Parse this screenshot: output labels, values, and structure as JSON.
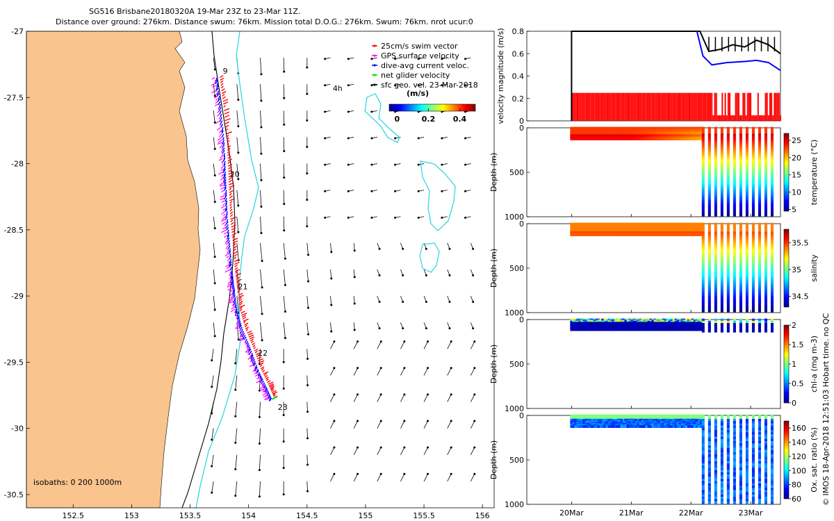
{
  "header": {
    "line1": "SG516 Brisbane20180320A 19-Mar 23Z to 23-Mar 11Z.",
    "line2": "Distance over ground: 276km. Distance swum: 76km. Mission total D.O.G.: 276km. Swum: 76km. nrot ucur:0"
  },
  "colors": {
    "land": "#f9c48e",
    "contour_200m": "#000000",
    "contour_1000m": "#22d4e0",
    "swim_vector": "#ff0000",
    "gps_velocity": "#ff00ff",
    "dive_avg": "#0000ff",
    "net_velocity": "#00dd00",
    "sfc_geo": "#000000"
  },
  "map": {
    "xlim": [
      152.1,
      156.1
    ],
    "ylim": [
      -30.6,
      -27.0
    ],
    "xticks": [
      "152.5",
      "153",
      "153.5",
      "154",
      "154.5",
      "155",
      "155.5",
      "156"
    ],
    "xtick_values": [
      152.5,
      153,
      153.5,
      154,
      154.5,
      155,
      155.5,
      156
    ],
    "yticks": [
      "-27",
      "-27.5",
      "-28",
      "-28.5",
      "-29",
      "-29.5",
      "-30",
      "-30.5"
    ],
    "ytick_values": [
      -27,
      -27.5,
      -28,
      -28.5,
      -29,
      -29.5,
      -30,
      -30.5
    ],
    "legend": [
      {
        "label": "25cm/s swim vector",
        "color": "#ff0000"
      },
      {
        "label": "GPS surface velocity",
        "color": "#ff00ff"
      },
      {
        "label": "dive-avg current veloc.",
        "color": "#0000ff"
      },
      {
        "label": "net glider velocity",
        "color": "#00dd00"
      },
      {
        "label": "sfc geo. vel. 23-Mar-2018",
        "color": "#000000"
      }
    ],
    "colorbar": {
      "title": "(m/s)",
      "ticks": [
        "0",
        "0.2",
        "0.4"
      ],
      "tick_values": [
        0,
        0.2,
        0.4
      ],
      "range": [
        -0.05,
        0.5
      ]
    },
    "isobaths_label": "isobaths: 0   200  1000m",
    "day_labels": [
      {
        "text": "9",
        "lon": 153.78,
        "lat": -27.32
      },
      {
        "text": "20",
        "lon": 153.84,
        "lat": -28.1
      },
      {
        "text": "21",
        "lon": 153.91,
        "lat": -28.95
      },
      {
        "text": "22",
        "lon": 154.08,
        "lat": -29.45
      },
      {
        "text": "23",
        "lon": 154.25,
        "lat": -29.86
      },
      {
        "text": "4h",
        "lon": 154.72,
        "lat": -27.45
      }
    ],
    "track": [
      [
        153.73,
        -27.35
      ],
      [
        153.76,
        -27.55
      ],
      [
        153.79,
        -27.8
      ],
      [
        153.8,
        -28.0
      ],
      [
        153.81,
        -28.2
      ],
      [
        153.82,
        -28.4
      ],
      [
        153.84,
        -28.6
      ],
      [
        153.86,
        -28.8
      ],
      [
        153.88,
        -28.95
      ],
      [
        153.9,
        -29.1
      ],
      [
        153.95,
        -29.25
      ],
      [
        154.02,
        -29.4
      ],
      [
        154.08,
        -29.55
      ],
      [
        154.15,
        -29.68
      ],
      [
        154.2,
        -29.78
      ]
    ],
    "arrow_grid": {
      "lon_start": 153.5,
      "lon_step": 0.2,
      "lon_count": 13,
      "lat_start": -27.2,
      "lat_step": -0.2,
      "lat_count": 17
    }
  },
  "chart_data": [
    {
      "type": "line",
      "ylabel": "velocity magnitude (m/s)",
      "ylim": [
        0,
        0.8
      ],
      "yticks": [
        "0",
        "0.2",
        "0.4",
        "0.6",
        "0.8"
      ],
      "ytick_values": [
        0,
        0.2,
        0.4,
        0.6,
        0.8
      ],
      "series": [
        {
          "color": "#000000",
          "x": [
            0.0,
            0.0,
            2.15,
            2.3,
            2.5,
            2.7,
            2.9,
            3.1,
            3.3,
            3.5
          ],
          "values": [
            0.0,
            0.8,
            0.8,
            0.62,
            0.64,
            0.68,
            0.66,
            0.72,
            0.68,
            0.6
          ]
        },
        {
          "color": "#0000ff",
          "x": [
            2.1,
            2.2,
            2.35,
            2.6,
            2.9,
            3.1,
            3.3,
            3.5
          ],
          "values": [
            0.8,
            0.58,
            0.5,
            0.52,
            0.53,
            0.54,
            0.52,
            0.45
          ]
        }
      ],
      "red_bar_level": 0.25,
      "xrange_days": [
        0,
        3.5
      ]
    },
    {
      "type": "scatter",
      "ylabel": "Depth (m)",
      "cblabel": "temperature (°C)",
      "yticks": [
        "0",
        "500",
        "1000"
      ],
      "cbticks": [
        "5",
        "10",
        "15",
        "20",
        "25"
      ],
      "cb_values": [
        5,
        10,
        15,
        20,
        25
      ],
      "cblim": [
        4.5,
        27
      ]
    },
    {
      "type": "scatter",
      "ylabel": "Depth (m)",
      "cblabel": "salinity",
      "yticks": [
        "0",
        "500",
        "1000"
      ],
      "cbticks": [
        "34.5",
        "35",
        "35.5"
      ],
      "cb_values": [
        34.5,
        35,
        35.5
      ],
      "cblim": [
        34.3,
        35.75
      ]
    },
    {
      "type": "scatter",
      "ylabel": "Depth (m)",
      "cblabel": "chl-a (mg m-3)",
      "yticks": [
        "0",
        "500",
        "1000"
      ],
      "cbticks": [
        "0",
        "0.5",
        "1",
        "1.5",
        "2"
      ],
      "cb_values": [
        0,
        0.5,
        1,
        1.5,
        2
      ],
      "cblim": [
        0,
        2
      ]
    },
    {
      "type": "scatter",
      "ylabel": "Depth (m)",
      "cblabel": "Ox. sat. ratio (%)",
      "yticks": [
        "0",
        "500",
        "1000"
      ],
      "cbticks": [
        "60",
        "80",
        "100",
        "120",
        "140",
        "160"
      ],
      "cb_values": [
        60,
        80,
        100,
        120,
        140,
        160
      ],
      "cblim": [
        60,
        170
      ]
    }
  ],
  "time_axis": {
    "labels": [
      "20Mar",
      "21Mar",
      "22Mar",
      "23Mar"
    ],
    "day_values": [
      0,
      1,
      2,
      3
    ],
    "xlim": [
      -0.75,
      3.5
    ]
  },
  "footer": {
    "vertical_note": "© IMOS 18-Apr-2018 12:51:03 Hobart time. no QC"
  }
}
